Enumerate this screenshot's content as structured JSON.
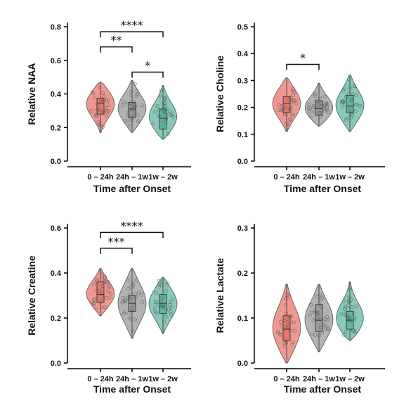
{
  "colors": {
    "red": "#e8776b",
    "gray": "#9a9a9a",
    "teal": "#5fb7a3"
  },
  "chart_data": [
    {
      "type": "violin",
      "ylabel": "Relative NAA",
      "xlabel": "Time after Onset",
      "ylim": [
        0,
        0.8
      ],
      "yticks": [
        "0.0",
        "0.2",
        "0.4",
        "0.6",
        "0.8"
      ],
      "categories": [
        "0 – 24h",
        "24h – 1w",
        "1w – 2w"
      ],
      "groups": [
        {
          "color_key": "red",
          "min": 0.17,
          "max": 0.47,
          "q1": 0.28,
          "median": 0.345,
          "q3": 0.375
        },
        {
          "color_key": "gray",
          "min": 0.17,
          "max": 0.48,
          "q1": 0.26,
          "median": 0.31,
          "q3": 0.35
        },
        {
          "color_key": "teal",
          "min": 0.13,
          "max": 0.45,
          "q1": 0.19,
          "median": 0.255,
          "q3": 0.31
        }
      ],
      "significance": [
        {
          "from": 0,
          "to": 1,
          "label": "**",
          "y": 0.68
        },
        {
          "from": 1,
          "to": 2,
          "label": "*",
          "y": 0.53
        },
        {
          "from": 0,
          "to": 2,
          "label": "****",
          "y": 0.77
        }
      ]
    },
    {
      "type": "violin",
      "ylabel": "Relative Choline",
      "xlabel": "Time after Onset",
      "ylim": [
        0,
        0.5
      ],
      "yticks": [
        "0.0",
        "0.1",
        "0.2",
        "0.3",
        "0.4",
        "0.5"
      ],
      "categories": [
        "0 – 24h",
        "24h – 1w",
        "1w – 2w"
      ],
      "groups": [
        {
          "color_key": "red",
          "min": 0.11,
          "max": 0.31,
          "q1": 0.18,
          "median": 0.215,
          "q3": 0.24
        },
        {
          "color_key": "gray",
          "min": 0.13,
          "max": 0.29,
          "q1": 0.17,
          "median": 0.195,
          "q3": 0.225
        },
        {
          "color_key": "teal",
          "min": 0.11,
          "max": 0.32,
          "q1": 0.18,
          "median": 0.205,
          "q3": 0.245
        }
      ],
      "significance": [
        {
          "from": 0,
          "to": 1,
          "label": "*",
          "y": 0.36
        }
      ]
    },
    {
      "type": "violin",
      "ylabel": "Relative Creatine",
      "xlabel": "Time after Onset",
      "ylim": [
        0,
        0.6
      ],
      "yticks": [
        "0.0",
        "0.2",
        "0.4",
        "0.6"
      ],
      "categories": [
        "0 – 24h",
        "24h – 1w",
        "1w – 2w"
      ],
      "groups": [
        {
          "color_key": "red",
          "min": 0.21,
          "max": 0.42,
          "q1": 0.27,
          "median": 0.305,
          "q3": 0.36
        },
        {
          "color_key": "gray",
          "min": 0.11,
          "max": 0.42,
          "q1": 0.23,
          "median": 0.265,
          "q3": 0.3
        },
        {
          "color_key": "teal",
          "min": 0.13,
          "max": 0.38,
          "q1": 0.22,
          "median": 0.265,
          "q3": 0.305
        }
      ],
      "significance": [
        {
          "from": 0,
          "to": 1,
          "label": "***",
          "y": 0.51
        },
        {
          "from": 0,
          "to": 2,
          "label": "****",
          "y": 0.58
        }
      ]
    },
    {
      "type": "violin",
      "ylabel": "Relative Lactate",
      "xlabel": "Time after Onset",
      "ylim": [
        0,
        0.3
      ],
      "yticks": [
        "0.0",
        "0.1",
        "0.2",
        "0.3"
      ],
      "categories": [
        "0 – 24h",
        "24h – 1w",
        "1w – 2w"
      ],
      "groups": [
        {
          "color_key": "red",
          "min": 0.0,
          "max": 0.175,
          "q1": 0.05,
          "median": 0.075,
          "q3": 0.105
        },
        {
          "color_key": "gray",
          "min": 0.025,
          "max": 0.175,
          "q1": 0.07,
          "median": 0.095,
          "q3": 0.13
        },
        {
          "color_key": "teal",
          "min": 0.05,
          "max": 0.18,
          "q1": 0.075,
          "median": 0.095,
          "q3": 0.115
        }
      ],
      "significance": []
    }
  ]
}
